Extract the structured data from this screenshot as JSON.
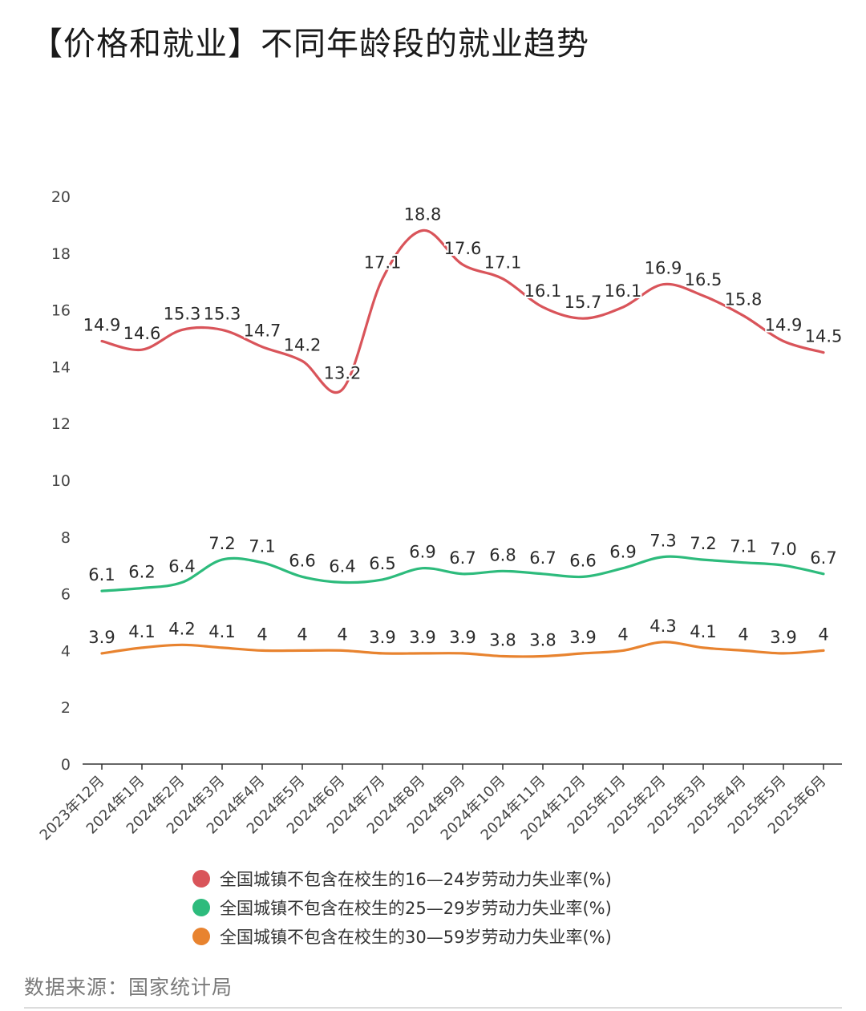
{
  "title": "【价格和就业】不同年龄段的就业趋势",
  "source": "数据来源：国家统计局",
  "chart_data": {
    "type": "line",
    "categories": [
      "2023年12月",
      "2024年1月",
      "2024年2月",
      "2024年3月",
      "2024年4月",
      "2024年5月",
      "2024年6月",
      "2024年7月",
      "2024年8月",
      "2024年9月",
      "2024年10月",
      "2024年11月",
      "2024年12月",
      "2025年1月",
      "2025年2月",
      "2025年3月",
      "2025年4月",
      "2025年5月",
      "2025年6月"
    ],
    "ylim": [
      0,
      20
    ],
    "yticks": [
      0,
      2,
      4,
      6,
      8,
      10,
      12,
      14,
      16,
      18,
      20
    ],
    "grid": false,
    "legend_position": "bottom",
    "series": [
      {
        "name": "全国城镇不包含在校生的16—24岁劳动力失业率(%)",
        "color": "#d9545a",
        "values": [
          14.9,
          14.6,
          15.3,
          15.3,
          14.7,
          14.2,
          13.2,
          17.1,
          18.8,
          17.6,
          17.1,
          16.1,
          15.7,
          16.1,
          16.9,
          16.5,
          15.8,
          14.9,
          14.5
        ],
        "labels": [
          "14.9",
          "14.6",
          "15.3",
          "15.3",
          "14.7",
          "14.2",
          "13.2",
          "17.1",
          "18.8",
          "17.6",
          "17.1",
          "16.1",
          "15.7",
          "16.1",
          "16.9",
          "16.5",
          "15.8",
          "14.9",
          "14.5"
        ]
      },
      {
        "name": "全国城镇不包含在校生的25—29岁劳动力失业率(%)",
        "color": "#2dbb7c",
        "values": [
          6.1,
          6.2,
          6.4,
          7.2,
          7.1,
          6.6,
          6.4,
          6.5,
          6.9,
          6.7,
          6.8,
          6.7,
          6.6,
          6.9,
          7.3,
          7.2,
          7.1,
          7.0,
          6.7
        ],
        "labels": [
          "6.1",
          "6.2",
          "6.4",
          "7.2",
          "7.1",
          "6.6",
          "6.4",
          "6.5",
          "6.9",
          "6.7",
          "6.8",
          "6.7",
          "6.6",
          "6.9",
          "7.3",
          "7.2",
          "7.1",
          "7.0",
          "6.7"
        ]
      },
      {
        "name": "全国城镇不包含在校生的30—59岁劳动力失业率(%)",
        "color": "#e8832f",
        "values": [
          3.9,
          4.1,
          4.2,
          4.1,
          4.0,
          4.0,
          4.0,
          3.9,
          3.9,
          3.9,
          3.8,
          3.8,
          3.9,
          4.0,
          4.3,
          4.1,
          4.0,
          3.9,
          4.0
        ],
        "labels": [
          "3.9",
          "4.1",
          "4.2",
          "4.1",
          "4",
          "4",
          "4",
          "3.9",
          "3.9",
          "3.9",
          "3.8",
          "3.8",
          "3.9",
          "4",
          "4.3",
          "4.1",
          "4",
          "3.9",
          "4"
        ]
      }
    ]
  }
}
